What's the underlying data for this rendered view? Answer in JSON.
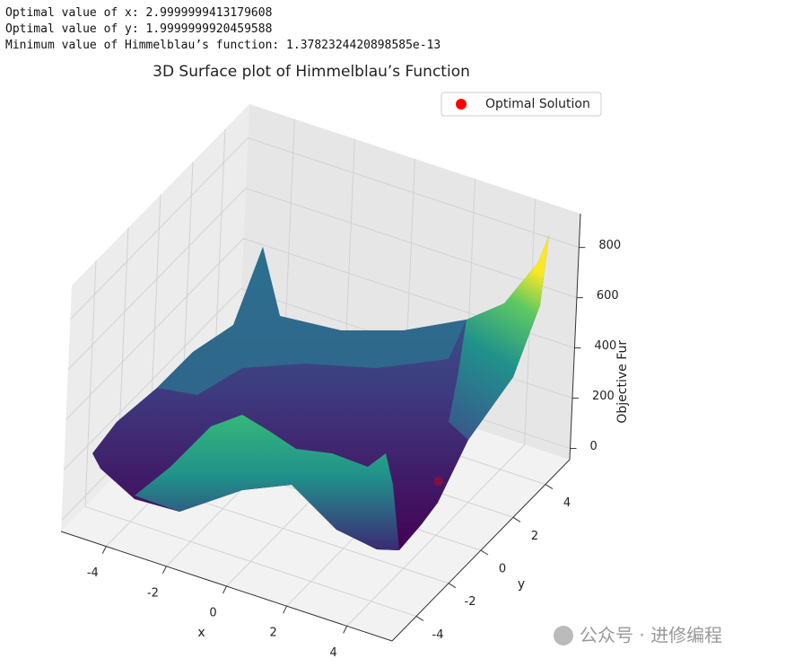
{
  "output": [
    {
      "label": "Optimal value of x:",
      "value": 2.9999999413179608
    },
    {
      "label": "Optimal value of y:",
      "value": 1.9999999920459588
    },
    {
      "label": "Minimum value of Himmelblau’s function:",
      "value": 1.3782324420898585e-13
    }
  ],
  "chart_data": {
    "type": "surface3d",
    "title": "3D Surface plot of Himmelblau’s Function",
    "xlabel": "x",
    "ylabel": "y",
    "zlabel": "Objective Function Value",
    "xlim": [
      -5.5,
      5.5
    ],
    "ylim": [
      -5.5,
      5.5
    ],
    "zlim": [
      -44.5,
      934.5
    ],
    "xticks": [
      -4,
      -2,
      0,
      2,
      4
    ],
    "yticks": [
      -4,
      -2,
      0,
      2,
      4
    ],
    "zticks": [
      0,
      200,
      400,
      600,
      800
    ],
    "colormap": "viridis",
    "legend": {
      "loc": "upper right",
      "entries": [
        {
          "name": "Optimal Solution",
          "color": "red"
        }
      ]
    }
  },
  "watermark": "公众号 · 进修编程"
}
